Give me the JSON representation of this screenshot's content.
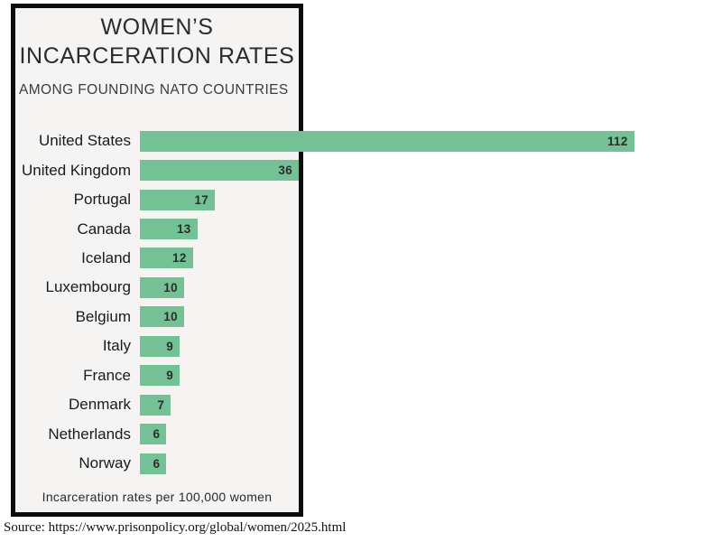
{
  "header": {
    "title_line1": "WOMEN’S",
    "title_line2": "INCARCERATION RATES",
    "subtitle": "AMONG FOUNDING NATO COUNTRIES"
  },
  "chart_data": {
    "type": "bar",
    "orientation": "horizontal",
    "title": "WOMEN’S INCARCERATION RATES",
    "subtitle": "AMONG FOUNDING NATO COUNTRIES",
    "categories": [
      "United States",
      "United Kingdom",
      "Portugal",
      "Canada",
      "Iceland",
      "Luxembourg",
      "Belgium",
      "Italy",
      "France",
      "Denmark",
      "Netherlands",
      "Norway"
    ],
    "values": [
      112,
      36,
      17,
      13,
      12,
      10,
      10,
      9,
      9,
      7,
      6,
      6
    ],
    "value_labels_shown": true,
    "xlabel": "Incarceration rates per 100,000 women",
    "xlim": [
      0,
      115
    ],
    "grid": false,
    "legend": false,
    "bar_color": "#74c195"
  },
  "footer": {
    "caption": "Incarceration rates per 100,000 women",
    "source": "Source: https://www.prisonpolicy.org/global/women/2025.html"
  },
  "colors": {
    "bar": "#74c195",
    "panel_background": "#f5f4f2",
    "panel_border": "#0d0d0d",
    "value_text": "#2d2d2d",
    "label_text": "#1a1a1a"
  }
}
